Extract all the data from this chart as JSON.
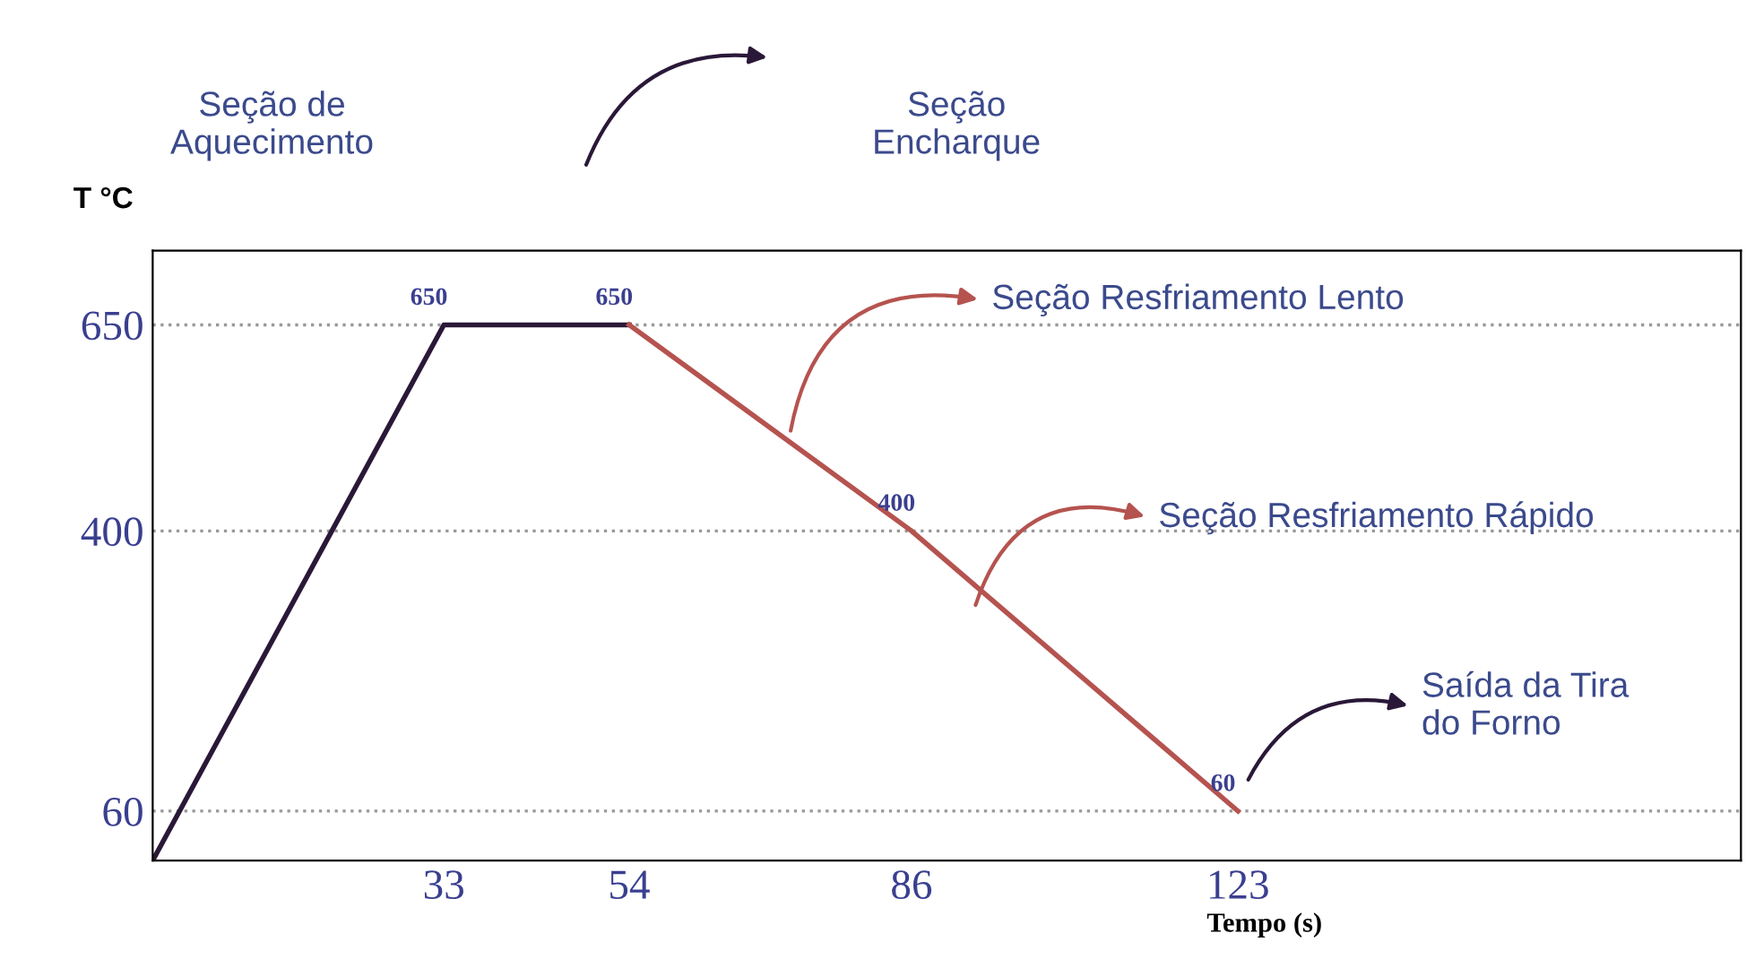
{
  "chart_data": {
    "type": "line",
    "xlabel": "Tempo (s)",
    "ylabel": "T °C",
    "series": [
      {
        "color": "#2a1838",
        "x": [
          0,
          33,
          54
        ],
        "values": [
          0,
          650,
          650
        ],
        "value_labels": [
          null,
          "650",
          "650"
        ]
      },
      {
        "color": "#b5534f",
        "x": [
          54,
          86,
          123
        ],
        "values": [
          650,
          400,
          60
        ],
        "value_labels": [
          null,
          "400",
          "60"
        ]
      }
    ],
    "xlim": [
      0,
      180
    ],
    "ylim": [
      0,
      740
    ],
    "xticks": [
      33,
      54,
      86,
      123
    ],
    "yticks": [
      60,
      400,
      650
    ],
    "grid": "y",
    "legend": false,
    "marker": "none",
    "line_style": "solid",
    "annotations": [
      "Seção de\nAquecimento",
      "Seção\nEncharque",
      "Seção Resfriamento Lento",
      "Seção Resfriamento Rápido",
      "Saída da Tira\ndo Forno"
    ]
  }
}
